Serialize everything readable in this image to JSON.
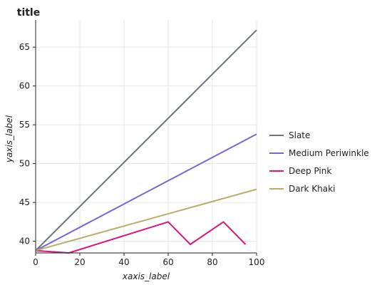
{
  "chart_data": {
    "type": "line",
    "title": "title",
    "xlabel": "xaxis_label",
    "ylabel": "yaxis_label",
    "xlim": [
      0,
      100
    ],
    "ylim": [
      38.5,
      68.5
    ],
    "xticks": [
      0,
      20,
      40,
      60,
      80,
      100
    ],
    "yticks": [
      40,
      45,
      50,
      55,
      60,
      65
    ],
    "grid": true,
    "legend_position": "right",
    "series": [
      {
        "name": "Slate",
        "color": "#6b737b",
        "x": [
          0,
          100
        ],
        "y": [
          38.8,
          67.2
        ]
      },
      {
        "name": "Medium Periwinkle",
        "color": "#7b65d6",
        "x": [
          0,
          100
        ],
        "y": [
          38.8,
          53.8
        ]
      },
      {
        "name": "Deep Pink",
        "color": "#e0137a",
        "x": [
          0,
          15,
          60,
          70,
          85,
          95
        ],
        "y": [
          38.8,
          38.5,
          42.5,
          39.6,
          42.5,
          39.6
        ]
      },
      {
        "name": "Dark Khaki",
        "color": "#b8b06a",
        "x": [
          0,
          100
        ],
        "y": [
          38.8,
          46.7
        ]
      }
    ]
  }
}
